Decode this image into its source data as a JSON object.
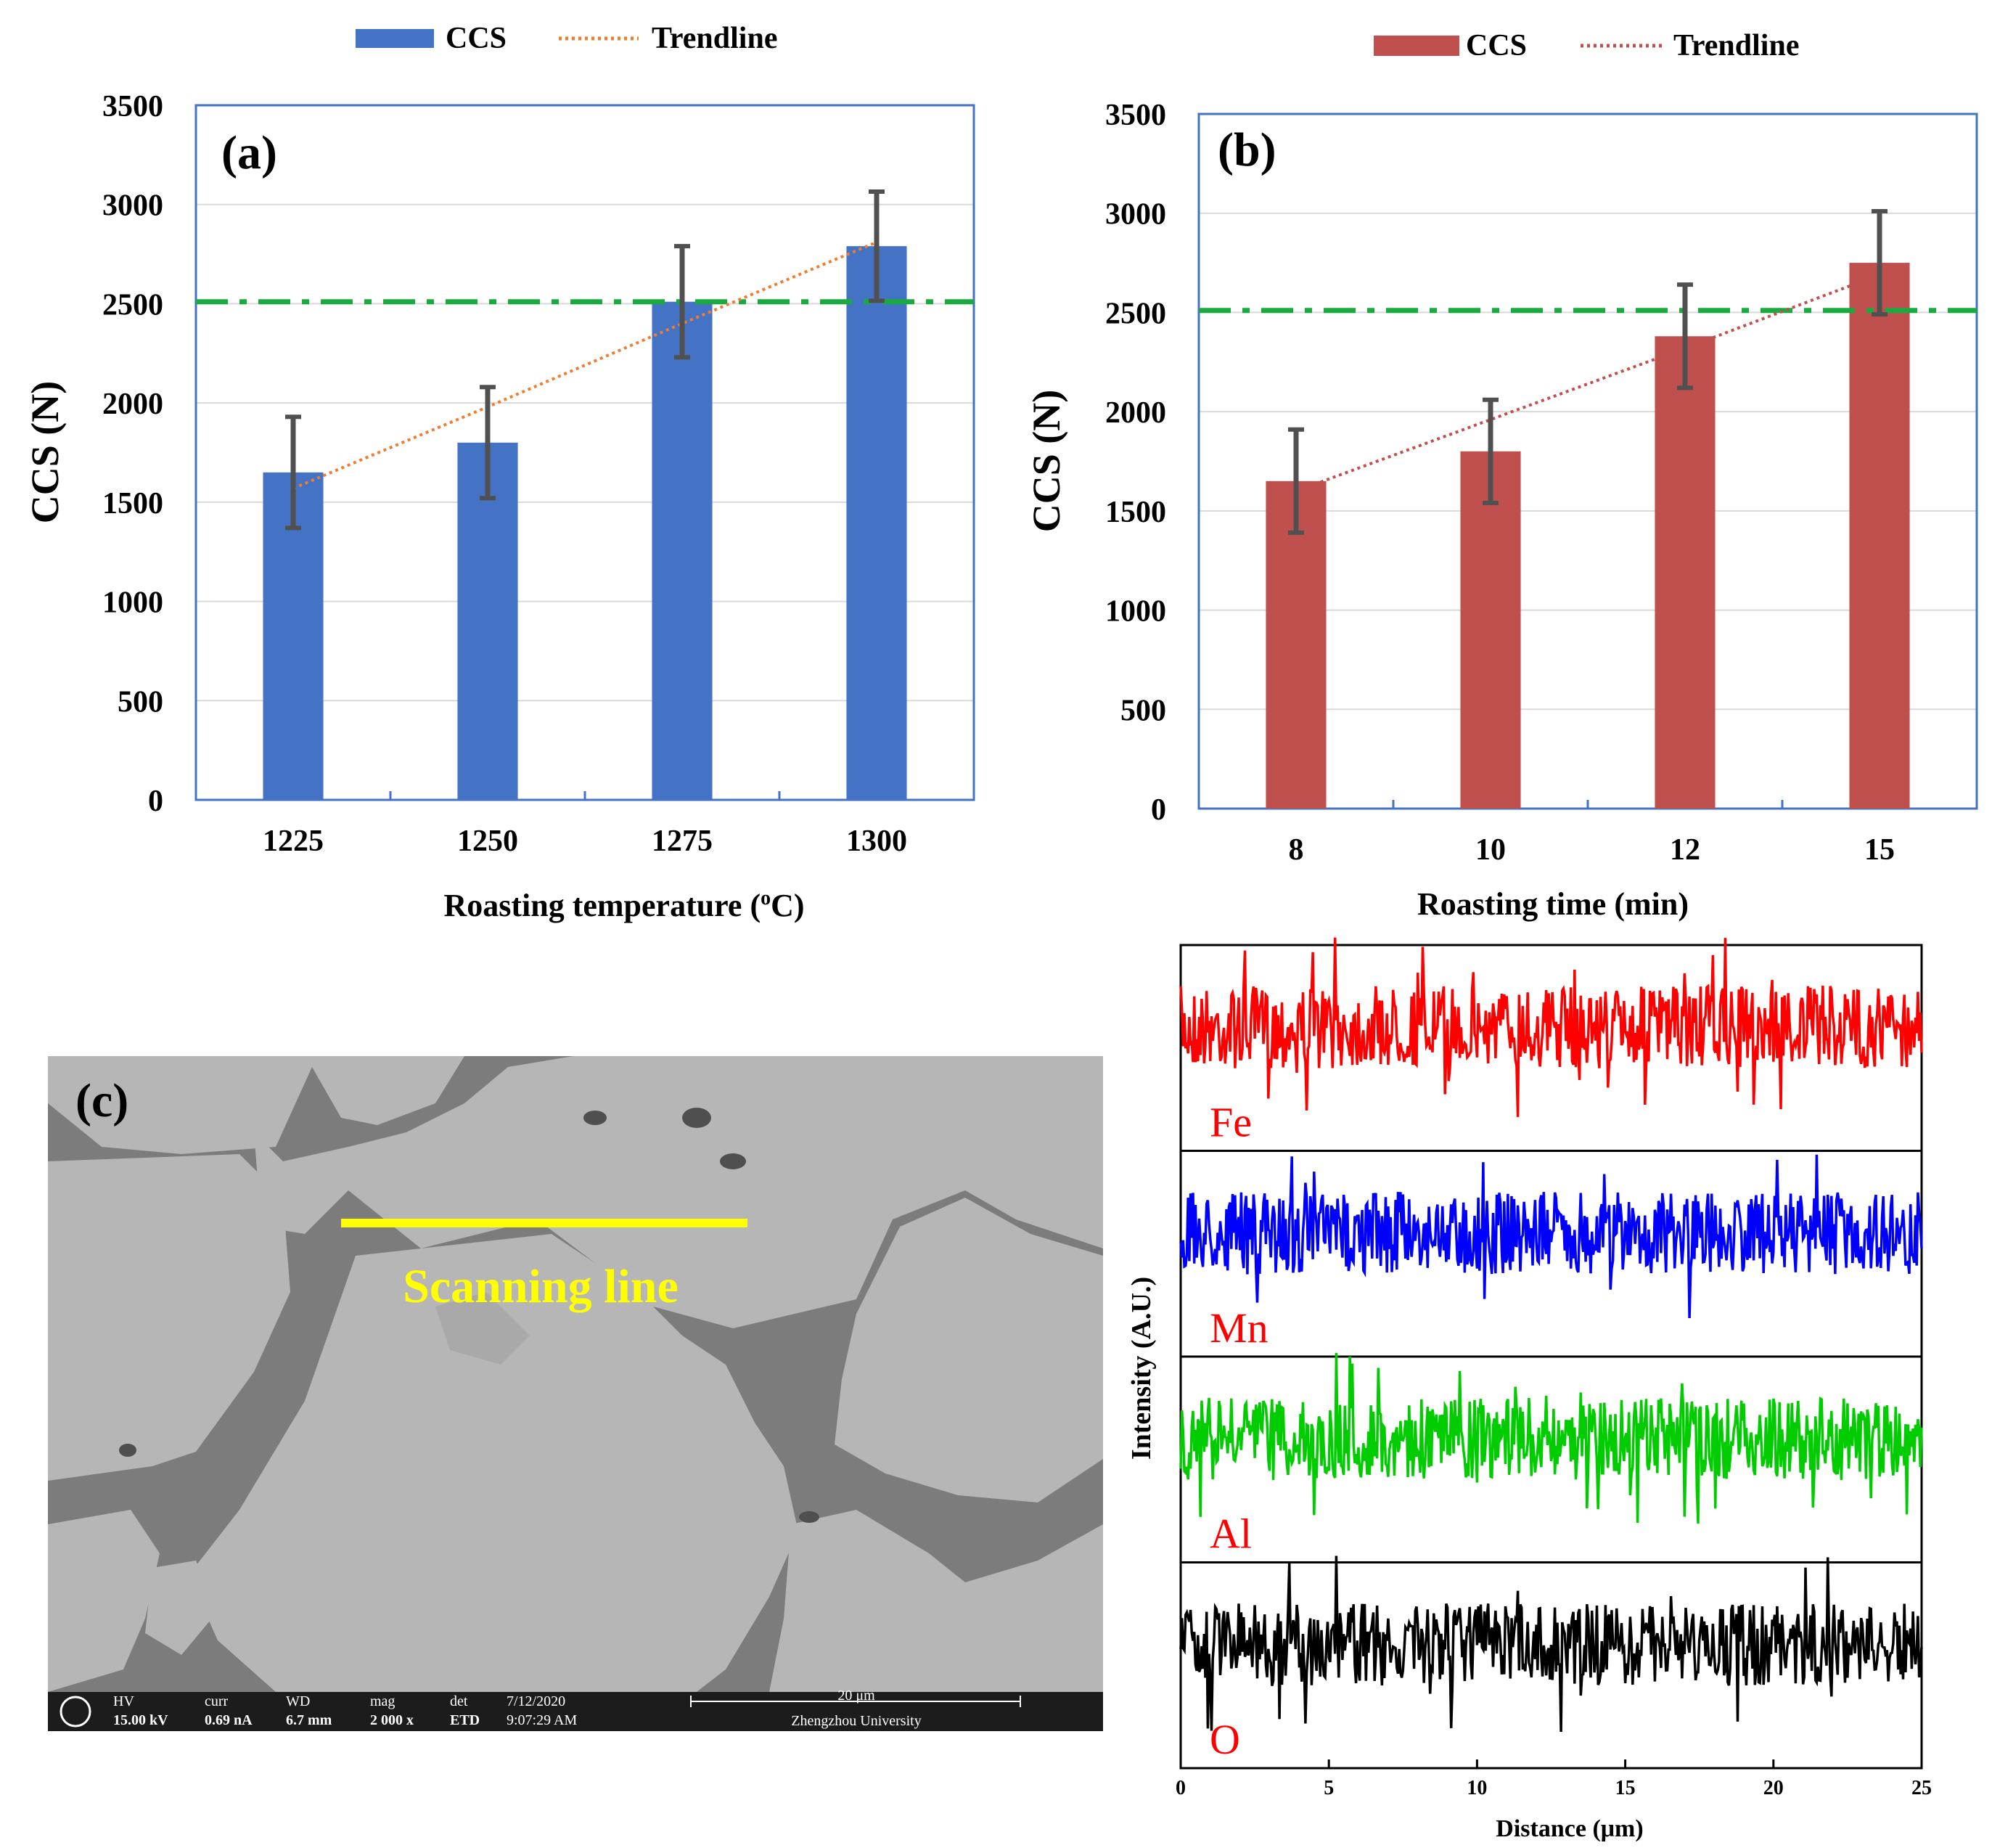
{
  "chart_data": [
    {
      "panel_label": "(a)",
      "type": "bar",
      "categories": [
        "1225",
        "1250",
        "1275",
        "1300"
      ],
      "values": [
        1650,
        1800,
        2510,
        2790
      ],
      "error": [
        280,
        280,
        280,
        275
      ],
      "trendline": [
        1570,
        1980,
        2400,
        2810
      ],
      "reference_line": 2510,
      "ylim": [
        0,
        3500
      ],
      "yticks": [
        "0",
        "500",
        "1000",
        "1500",
        "2000",
        "2500",
        "3000",
        "3500"
      ],
      "xlabel": "Roasting temperature (oC)",
      "xlabel_parts": {
        "pre": "Roasting temperature (",
        "sup": "o",
        "post": "C)"
      },
      "ylabel": "CCS (N)",
      "legend": {
        "bar": "CCS",
        "line": "Trendline"
      },
      "colors": {
        "bar": "#4472c4",
        "trend": "#ed7d31",
        "ref": "#1aab40",
        "err": "#505050"
      }
    },
    {
      "panel_label": "(b)",
      "type": "bar",
      "categories": [
        "8",
        "10",
        "12",
        "15"
      ],
      "values": [
        1650,
        1800,
        2380,
        2750
      ],
      "error": [
        260,
        260,
        260,
        260
      ],
      "trendline": [
        1600,
        1960,
        2320,
        2690
      ],
      "reference_line": 2510,
      "ylim": [
        0,
        3500
      ],
      "yticks": [
        "0",
        "500",
        "1000",
        "1500",
        "2000",
        "2500",
        "3000",
        "3500"
      ],
      "xlabel": "Roasting time (min)",
      "ylabel": "CCS (N)",
      "legend": {
        "bar": "CCS",
        "line": "Trendline"
      },
      "colors": {
        "bar": "#c0504d",
        "trend": "#c0504d",
        "ref": "#1aab40",
        "err": "#505050"
      }
    },
    {
      "type": "line",
      "xlabel": "Distance (μm)",
      "ylabel": "Intensity (A.U.)",
      "xlim": [
        0,
        25
      ],
      "xticks": [
        "0",
        "5",
        "10",
        "15",
        "20",
        "25"
      ],
      "series": [
        {
          "name": "Fe",
          "color": "#ff0000"
        },
        {
          "name": "Mn",
          "color": "#0000ff"
        },
        {
          "name": "Al",
          "color": "#00cc00"
        },
        {
          "name": "O",
          "color": "#000000"
        }
      ]
    }
  ],
  "sem": {
    "panel_label": "(c)",
    "annotation": "Scanning line",
    "annotation_color": "#ffff00",
    "databar": {
      "hv_label": "HV",
      "hv_value": "15.00 kV",
      "curr_label": "curr",
      "curr_value": "0.69 nA",
      "wd_label": "WD",
      "wd_value": "6.7 mm",
      "mag_label": "mag",
      "mag_value": "2 000 x",
      "det_label": "det",
      "det_value": "ETD",
      "date": "7/12/2020",
      "time": "9:07:29 AM",
      "scale": "20 μm",
      "institution": "Zhengzhou University"
    }
  }
}
